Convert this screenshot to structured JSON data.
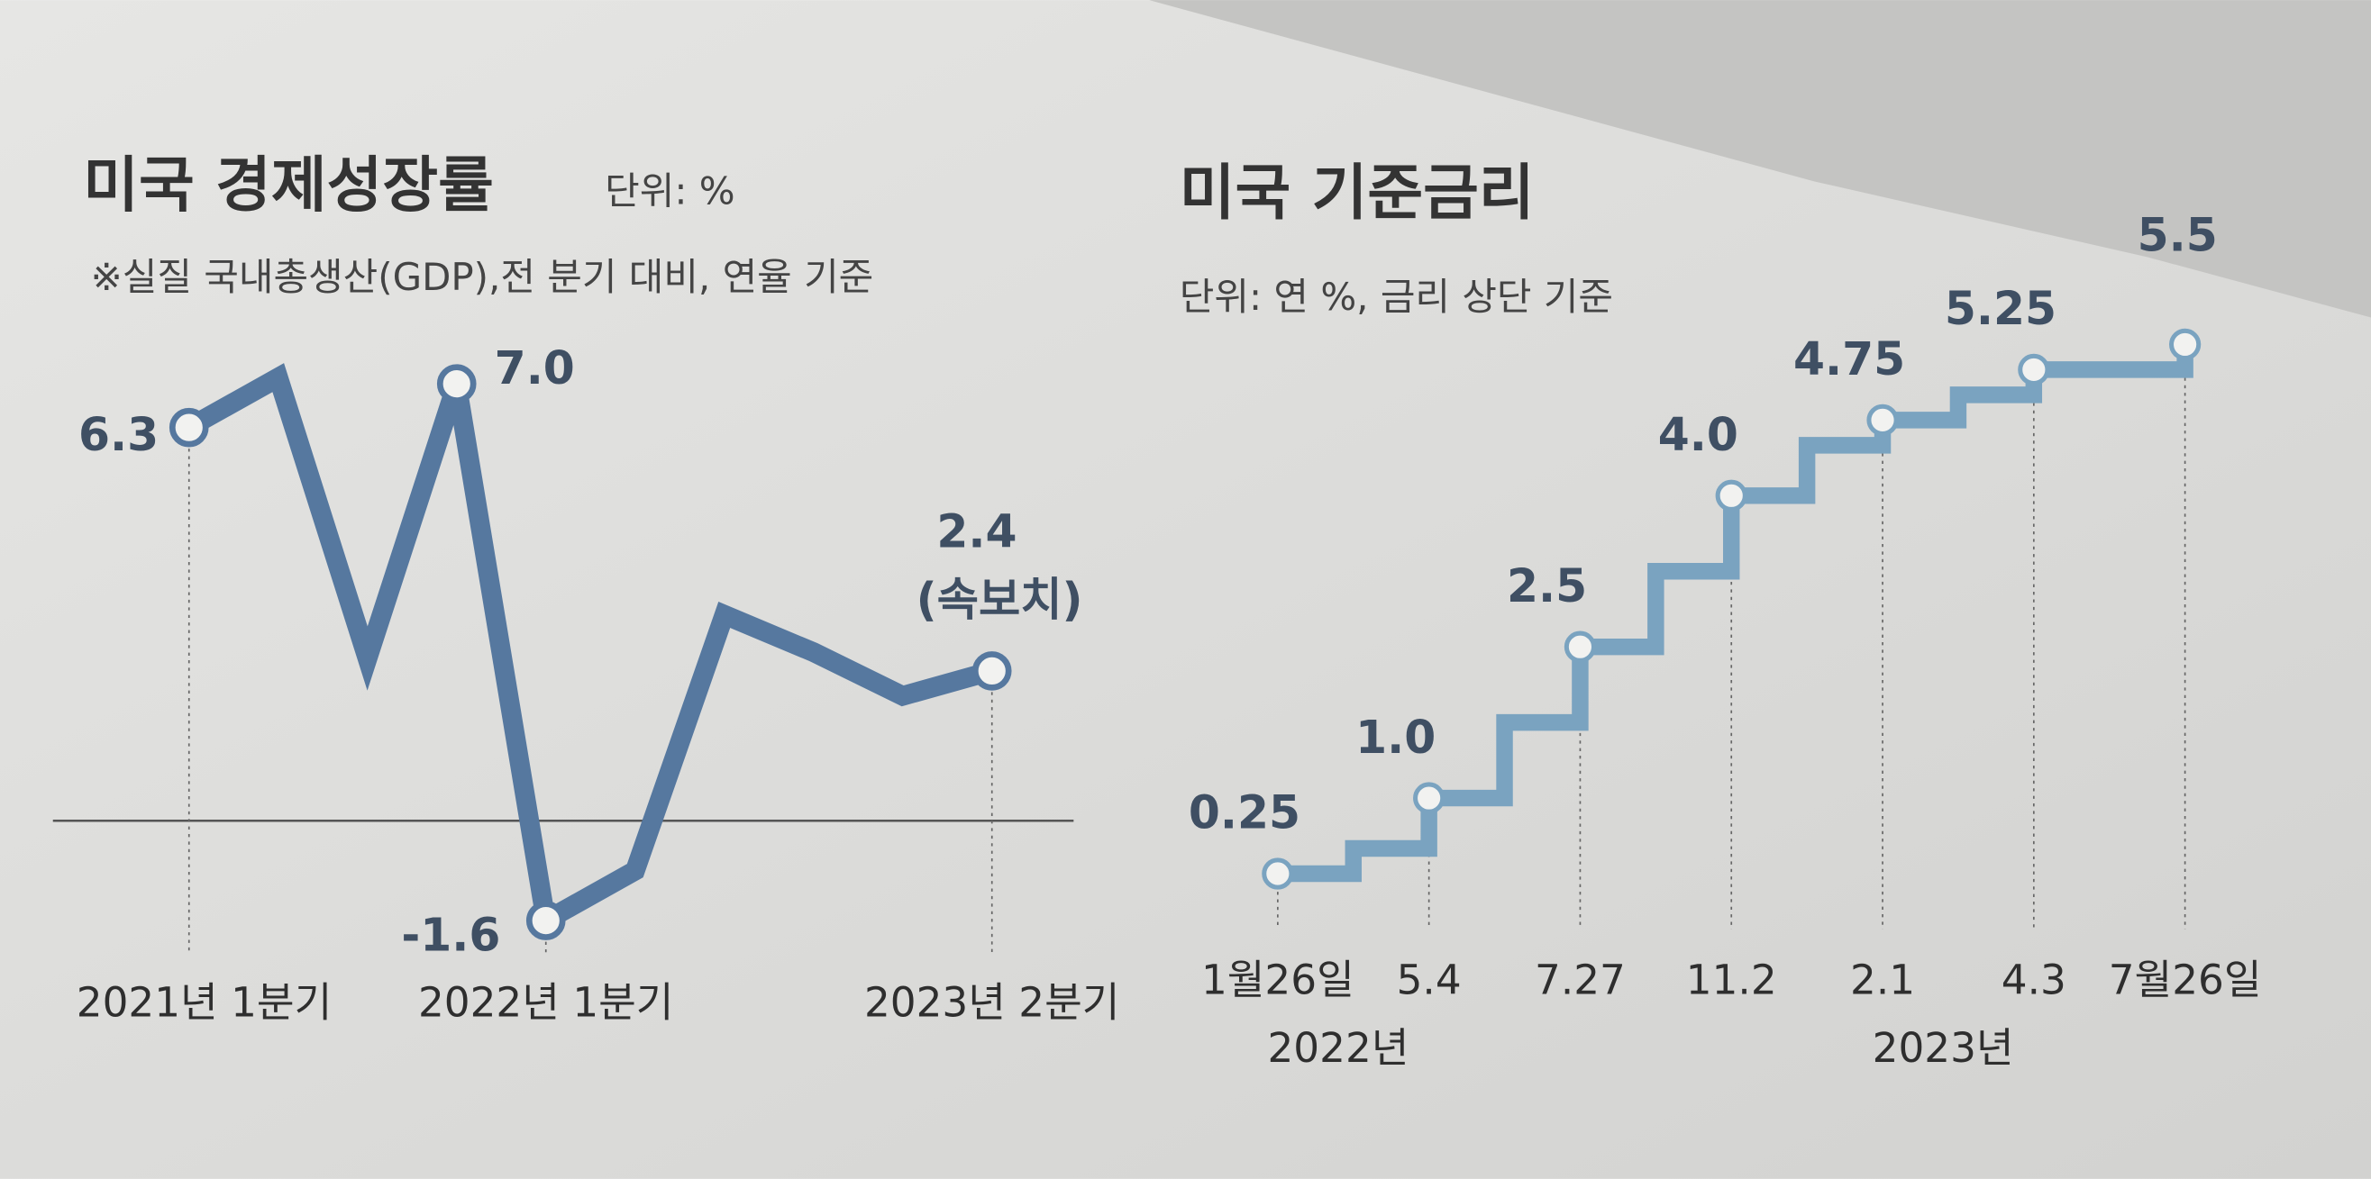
{
  "chart_data": [
    {
      "type": "line",
      "title": "미국 경제성장률",
      "unit": "단위: %",
      "subtitle": "※실질 국내총생산(GDP),전 분기 대비, 연율 기준",
      "categories": [
        "2021년 1분기",
        null,
        null,
        null,
        "2022년 1분기",
        null,
        null,
        null,
        null,
        "2023년 2분기"
      ],
      "values": [
        6.3,
        7.1,
        2.6,
        7.0,
        -1.6,
        -0.8,
        3.3,
        2.7,
        2.0,
        2.4
      ],
      "value_labels": [
        "6.3",
        null,
        null,
        "7.0",
        "-1.6",
        null,
        null,
        null,
        null,
        "2.4"
      ],
      "annotation": "(속보치)",
      "color": "#56789f"
    },
    {
      "type": "step",
      "title": "미국 기준금리",
      "subtitle": "단위: 연 %, 금리 상단 기준",
      "categories": [
        "1월26일",
        null,
        "5.4",
        null,
        "7.27",
        null,
        "11.2",
        null,
        "2.1",
        null,
        "4.3",
        "7월26일"
      ],
      "years": [
        "2022년",
        null,
        null,
        null,
        null,
        null,
        null,
        null,
        "2023년",
        null,
        null,
        null
      ],
      "values": [
        0.25,
        0.5,
        1.0,
        1.75,
        2.5,
        3.25,
        4.0,
        4.5,
        4.75,
        5.0,
        5.25,
        5.5
      ],
      "value_labels": [
        "0.25",
        null,
        "1.0",
        null,
        "2.5",
        null,
        "4.0",
        null,
        "4.75",
        null,
        "5.25",
        "5.5"
      ],
      "color": "#7aa3c0"
    }
  ]
}
